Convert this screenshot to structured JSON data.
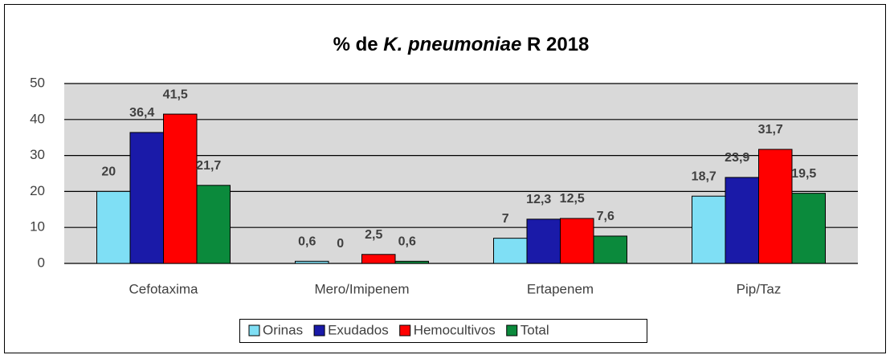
{
  "chart_data": {
    "type": "bar",
    "title": [
      "% de ",
      "K. pneumoniae",
      " R 2018"
    ],
    "categories": [
      "Cefotaxima",
      "Mero/Imipenem",
      "Ertapenem",
      "Pip/Taz"
    ],
    "series": [
      {
        "name": "Orinas",
        "color": "#7fdff5",
        "values": [
          20,
          0.6,
          7,
          18.7
        ],
        "value_labels": [
          "20",
          "0,6",
          "7",
          "18,7"
        ]
      },
      {
        "name": "Exudados",
        "color": "#1a1aa8",
        "values": [
          36.4,
          0,
          12.3,
          23.9
        ],
        "value_labels": [
          "36,4",
          "0",
          "12,3",
          "23,9"
        ]
      },
      {
        "name": "Hemocultivos",
        "color": "#ff0000",
        "values": [
          41.5,
          2.5,
          12.5,
          31.7
        ],
        "value_labels": [
          "41,5",
          "2,5",
          "12,5",
          "31,7"
        ]
      },
      {
        "name": "Total",
        "color": "#0b8a3c",
        "values": [
          21.7,
          0.6,
          7.6,
          19.5
        ],
        "value_labels": [
          "21,7",
          "0,6",
          "7,6",
          "19,5"
        ]
      }
    ],
    "ylim": [
      0,
      50
    ],
    "yticks": [
      0,
      10,
      20,
      30,
      40,
      50
    ],
    "grid": true,
    "legend": "bottom"
  }
}
